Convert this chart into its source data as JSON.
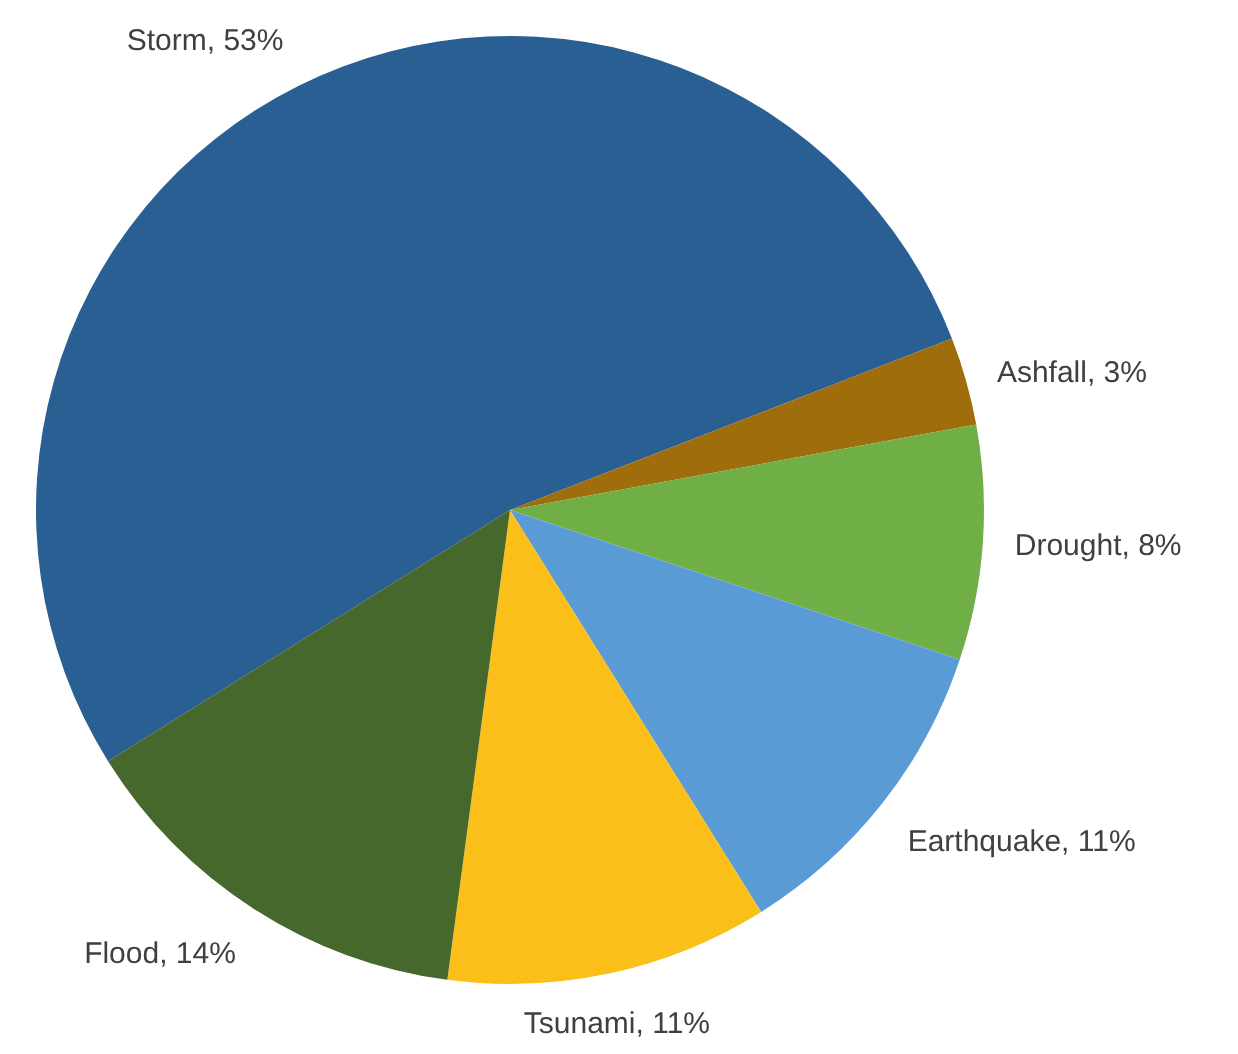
{
  "chart_data": {
    "type": "pie",
    "categories": [
      "Storm",
      "Ashfall",
      "Drought",
      "Earthquake",
      "Tsunami",
      "Flood"
    ],
    "values": [
      53,
      3,
      8,
      11,
      11,
      14
    ],
    "value_labels": [
      ", 53%",
      ", 3%",
      ", 8%",
      ", 11%",
      ", 11%",
      ", 14%"
    ],
    "colors": [
      "#2a5f94",
      "#a06d0c",
      "#6faf46",
      "#5b9bd5",
      "#fbbf1a",
      "#46682c"
    ]
  }
}
